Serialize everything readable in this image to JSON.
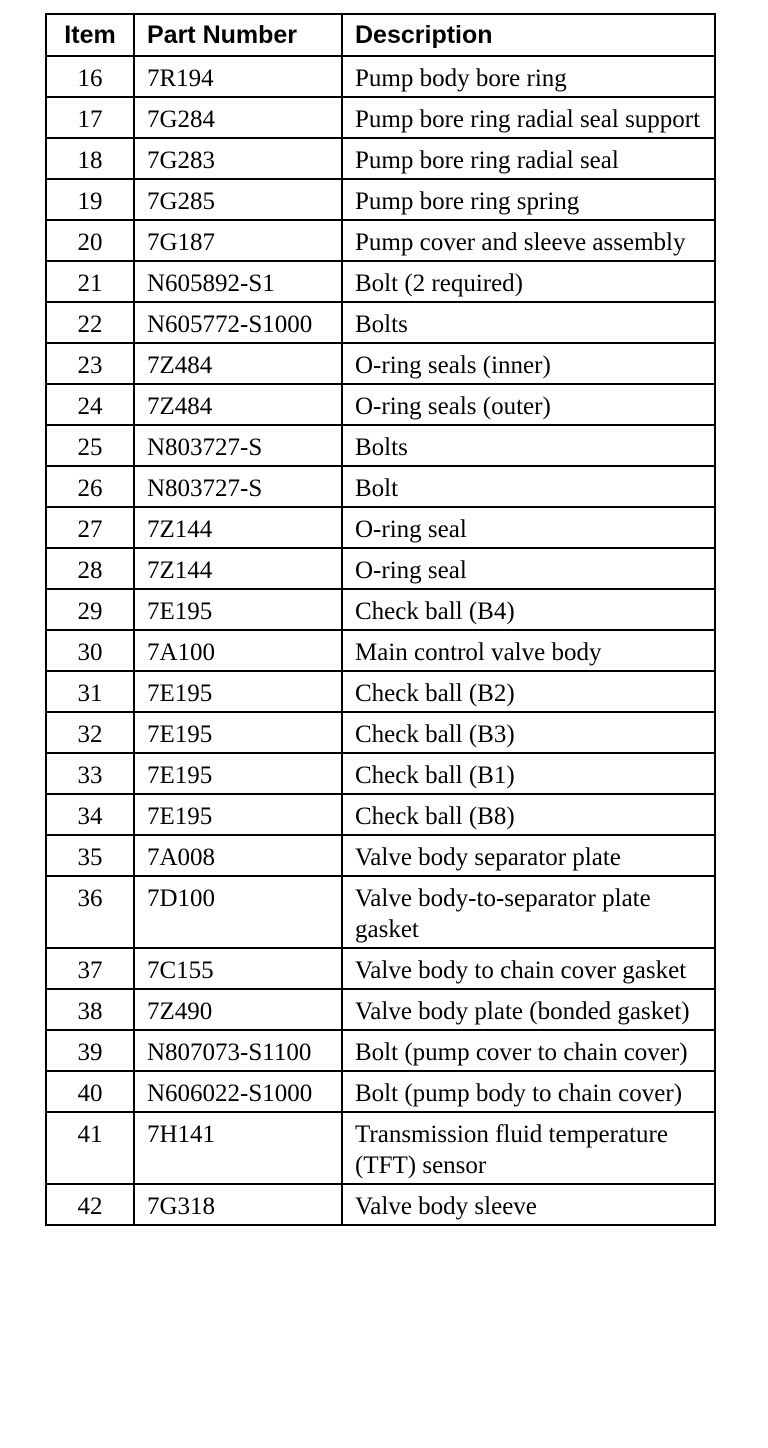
{
  "table": {
    "headers": [
      "Item",
      "Part Number",
      "Description"
    ],
    "rows": [
      {
        "item": "16",
        "part": "7R194",
        "desc": "Pump body bore ring"
      },
      {
        "item": "17",
        "part": "7G284",
        "desc": "Pump bore ring radial seal support"
      },
      {
        "item": "18",
        "part": "7G283",
        "desc": "Pump bore ring radial seal"
      },
      {
        "item": "19",
        "part": "7G285",
        "desc": "Pump bore ring spring"
      },
      {
        "item": "20",
        "part": "7G187",
        "desc": "Pump cover and sleeve assembly"
      },
      {
        "item": "21",
        "part": "N605892-S1",
        "desc": "Bolt (2 required)"
      },
      {
        "item": "22",
        "part": "N605772-S1000",
        "desc": "Bolts"
      },
      {
        "item": "23",
        "part": "7Z484",
        "desc": "O-ring seals (inner)"
      },
      {
        "item": "24",
        "part": "7Z484",
        "desc": "O-ring seals (outer)"
      },
      {
        "item": "25",
        "part": "N803727-S",
        "desc": "Bolts"
      },
      {
        "item": "26",
        "part": "N803727-S",
        "desc": "Bolt"
      },
      {
        "item": "27",
        "part": "7Z144",
        "desc": "O-ring seal"
      },
      {
        "item": "28",
        "part": "7Z144",
        "desc": "O-ring seal"
      },
      {
        "item": "29",
        "part": "7E195",
        "desc": "Check ball (B4)"
      },
      {
        "item": "30",
        "part": "7A100",
        "desc": "Main control valve body"
      },
      {
        "item": "31",
        "part": "7E195",
        "desc": "Check ball (B2)"
      },
      {
        "item": "32",
        "part": "7E195",
        "desc": "Check ball (B3)"
      },
      {
        "item": "33",
        "part": "7E195",
        "desc": "Check ball (B1)"
      },
      {
        "item": "34",
        "part": "7E195",
        "desc": "Check ball (B8)"
      },
      {
        "item": "35",
        "part": "7A008",
        "desc": "Valve body separator plate"
      },
      {
        "item": "36",
        "part": "7D100",
        "desc": "Valve body-to-separator plate gasket"
      },
      {
        "item": "37",
        "part": "7C155",
        "desc": "Valve body to chain cover gasket"
      },
      {
        "item": "38",
        "part": "7Z490",
        "desc": "Valve body plate (bonded gasket)"
      },
      {
        "item": "39",
        "part": "N807073-S1100",
        "desc": "Bolt (pump cover to chain cover)"
      },
      {
        "item": "40",
        "part": "N606022-S1000",
        "desc": "Bolt (pump body to chain cover)"
      },
      {
        "item": "41",
        "part": "7H141",
        "desc": "Transmission fluid temperature (TFT) sensor"
      },
      {
        "item": "42",
        "part": "7G318",
        "desc": "Valve body sleeve"
      }
    ]
  }
}
